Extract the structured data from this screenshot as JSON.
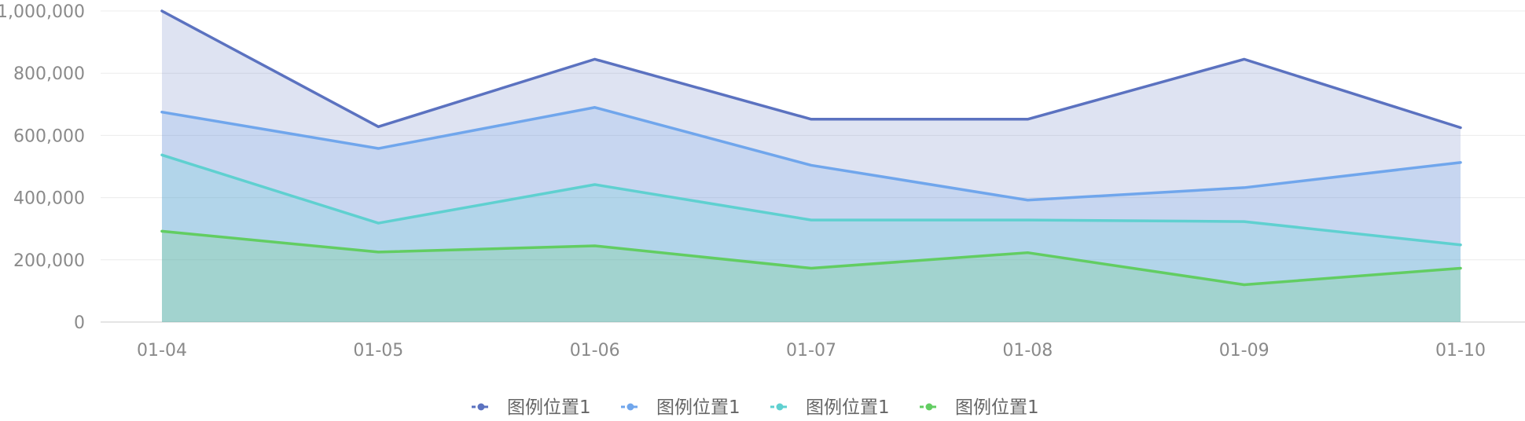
{
  "chart_data": {
    "type": "area",
    "categories": [
      "01-04",
      "01-05",
      "01-06",
      "01-07",
      "01-08",
      "01-09",
      "01-10"
    ],
    "ylim": [
      0,
      1000000
    ],
    "y_ticks": [
      0,
      200000,
      400000,
      600000,
      800000,
      1000000
    ],
    "y_tick_labels": [
      "0",
      "200,000",
      "400,000",
      "600,000",
      "800,000",
      "1,000,000"
    ],
    "grid": true,
    "legend_position": "bottom-center",
    "series": [
      {
        "name": "图例位置1",
        "color": "#5b72c0",
        "values": [
          1000000,
          628000,
          845000,
          652000,
          652000,
          845000,
          625000
        ]
      },
      {
        "name": "图例位置1",
        "color": "#70a6ec",
        "values": [
          675000,
          558000,
          690000,
          504000,
          392000,
          432000,
          513000
        ]
      },
      {
        "name": "图例位置1",
        "color": "#5fd0d0",
        "values": [
          537000,
          318000,
          442000,
          328000,
          328000,
          323000,
          248000
        ]
      },
      {
        "name": "图例位置1",
        "color": "#62cd62",
        "values": [
          292000,
          225000,
          245000,
          173000,
          223000,
          120000,
          173000
        ]
      }
    ]
  }
}
